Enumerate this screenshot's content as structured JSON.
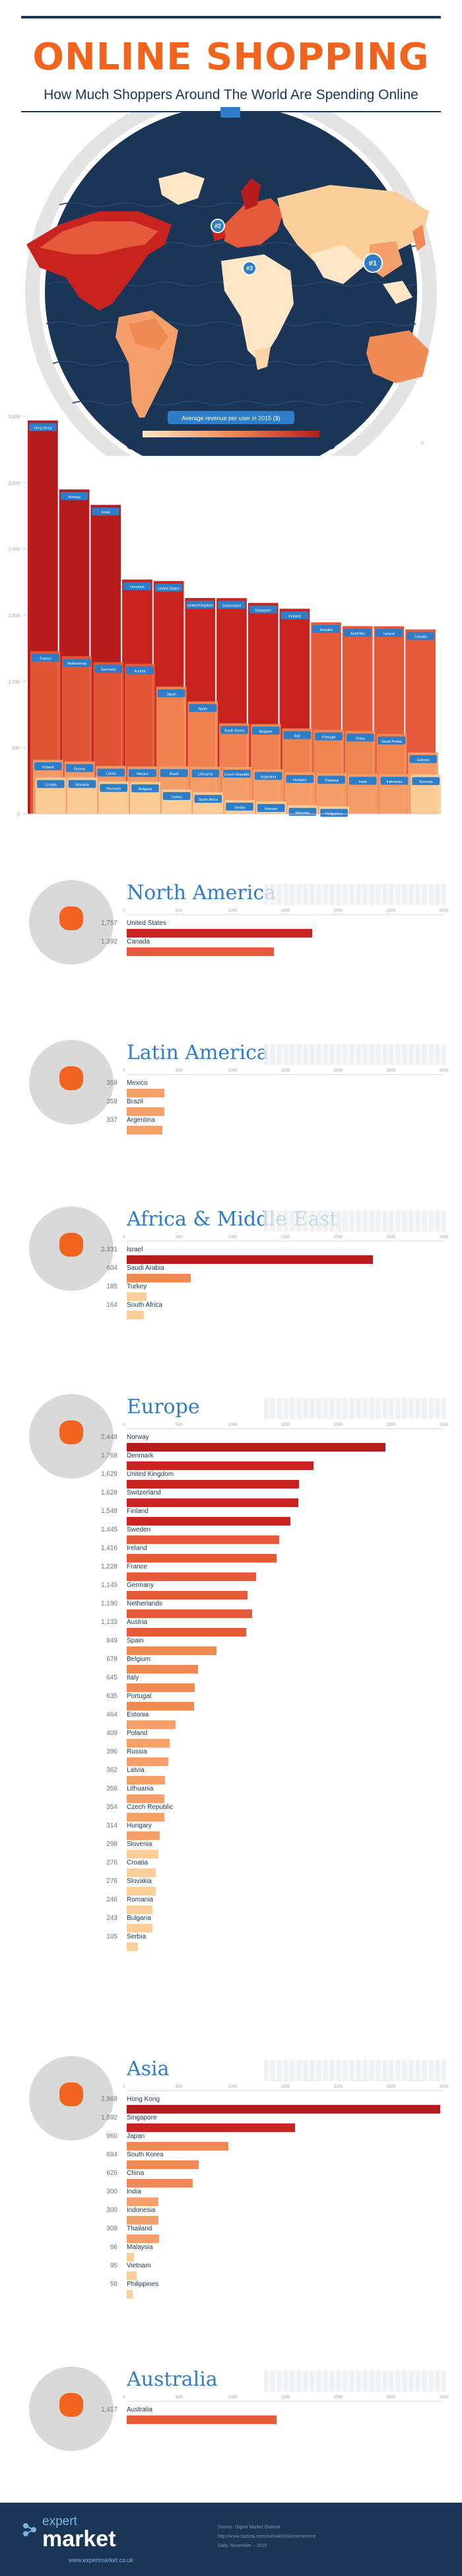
{
  "header": {
    "title": "ONLINE SHOPPING",
    "subtitle": "How Much Shoppers Around The World Are Spending Online"
  },
  "map": {
    "badges": [
      "#1",
      "#2",
      "#3"
    ],
    "legend_title": "Average revenue per user in 2015 ($)",
    "colors": {
      "navy": "#1b3557",
      "ocean": "#24466e",
      "low": "#fde7c7",
      "high": "#b71c1c",
      "accent": "#f0641e",
      "blue": "#2e7dc8"
    }
  },
  "chart_data": [
    {
      "type": "bar",
      "title": "",
      "yticks": [
        "0",
        "500",
        "1,000",
        "1,500",
        "2,000",
        "2,500",
        "3,000"
      ],
      "ylim": [
        0,
        3000
      ],
      "countries": [
        {
          "name": "Hong Kong",
          "value": 2968
        },
        {
          "name": "Norway",
          "value": 2448
        },
        {
          "name": "Israel",
          "value": 2331
        },
        {
          "name": "United States",
          "value": 1757
        },
        {
          "name": "Denmark",
          "value": 1768
        },
        {
          "name": "Singapore",
          "value": 1592
        },
        {
          "name": "United Kingdom",
          "value": 1629
        },
        {
          "name": "Switzerland",
          "value": 1628
        },
        {
          "name": "Finland",
          "value": 1548
        },
        {
          "name": "Sweden",
          "value": 1445
        },
        {
          "name": "Canada",
          "value": 1392
        },
        {
          "name": "Ireland",
          "value": 1416
        },
        {
          "name": "Australia",
          "value": 1417
        },
        {
          "name": "Germany",
          "value": 1145
        },
        {
          "name": "Netherlands",
          "value": 1190
        },
        {
          "name": "France",
          "value": 1228
        },
        {
          "name": "Austria",
          "value": 1133
        },
        {
          "name": "Japan",
          "value": 960
        },
        {
          "name": "Spain",
          "value": 849
        },
        {
          "name": "Belgium",
          "value": 678
        },
        {
          "name": "South Korea",
          "value": 684
        },
        {
          "name": "Italy",
          "value": 645
        },
        {
          "name": "Portugal",
          "value": 635
        },
        {
          "name": "Saudi Arabia",
          "value": 604
        },
        {
          "name": "China",
          "value": 626
        },
        {
          "name": "Estonia",
          "value": 464
        },
        {
          "name": "Poland",
          "value": 409
        },
        {
          "name": "Russia",
          "value": 396
        },
        {
          "name": "Latvia",
          "value": 362
        },
        {
          "name": "Lithuania",
          "value": 356
        },
        {
          "name": "Czech Republic",
          "value": 354
        },
        {
          "name": "Hungary",
          "value": 314
        },
        {
          "name": "Slovenia",
          "value": 298
        },
        {
          "name": "Croatia",
          "value": 276
        },
        {
          "name": "Slovakia",
          "value": 276
        },
        {
          "name": "India",
          "value": 300
        },
        {
          "name": "Mexico",
          "value": 358
        },
        {
          "name": "Indonesia",
          "value": 300
        },
        {
          "name": "Brazil",
          "value": 358
        },
        {
          "name": "Argentina",
          "value": 337
        },
        {
          "name": "Turkey",
          "value": 185
        },
        {
          "name": "Thailand",
          "value": 308
        },
        {
          "name": "Romania",
          "value": 246
        },
        {
          "name": "South Africa",
          "value": 164
        },
        {
          "name": "Bulgaria",
          "value": 243
        },
        {
          "name": "Malaysia",
          "value": 66
        },
        {
          "name": "Vietnam",
          "value": 95
        },
        {
          "name": "Philippines",
          "value": 58
        },
        {
          "name": "Serbia",
          "value": 105
        }
      ]
    },
    {
      "type": "bar",
      "region": "North America",
      "axis": [
        "0",
        "500",
        "1000",
        "1500",
        "2000",
        "2500",
        "3000"
      ],
      "xlim": [
        0,
        3000
      ],
      "rows": [
        {
          "label": "United States",
          "value": 1757,
          "display": "1,757"
        },
        {
          "label": "Canada",
          "value": 1392,
          "display": "1,392"
        }
      ]
    },
    {
      "type": "bar",
      "region": "Latin America",
      "axis": [
        "0",
        "500",
        "1000",
        "1500",
        "2000",
        "2500",
        "3000"
      ],
      "xlim": [
        0,
        3000
      ],
      "rows": [
        {
          "label": "Mexico",
          "value": 358,
          "display": "358"
        },
        {
          "label": "Brazil",
          "value": 358,
          "display": "358"
        },
        {
          "label": "Argentina",
          "value": 337,
          "display": "337"
        }
      ]
    },
    {
      "type": "bar",
      "region": "Africa & Middle East",
      "axis": [
        "0",
        "500",
        "1000",
        "1500",
        "2000",
        "2500",
        "3000"
      ],
      "xlim": [
        0,
        3000
      ],
      "rows": [
        {
          "label": "Israel",
          "value": 2331,
          "display": "2,331"
        },
        {
          "label": "Saudi Arabia",
          "value": 604,
          "display": "604"
        },
        {
          "label": "Turkey",
          "value": 185,
          "display": "185"
        },
        {
          "label": "South Africa",
          "value": 164,
          "display": "164"
        }
      ]
    },
    {
      "type": "bar",
      "region": "Europe",
      "axis": [
        "0",
        "500",
        "1000",
        "1500",
        "2000",
        "2500",
        "3000"
      ],
      "xlim": [
        0,
        3000
      ],
      "rows": [
        {
          "label": "Norway",
          "value": 2448,
          "display": "2,448"
        },
        {
          "label": "Denmark",
          "value": 1768,
          "display": "1,768"
        },
        {
          "label": "United Kingdom",
          "value": 1629,
          "display": "1,629"
        },
        {
          "label": "Switzerland",
          "value": 1628,
          "display": "1,628"
        },
        {
          "label": "Finland",
          "value": 1548,
          "display": "1,548"
        },
        {
          "label": "Sweden",
          "value": 1445,
          "display": "1,445"
        },
        {
          "label": "Ireland",
          "value": 1416,
          "display": "1,416"
        },
        {
          "label": "France",
          "value": 1228,
          "display": "1,228"
        },
        {
          "label": "Germany",
          "value": 1145,
          "display": "1,145"
        },
        {
          "label": "Netherlands",
          "value": 1190,
          "display": "1,190"
        },
        {
          "label": "Austria",
          "value": 1133,
          "display": "1,133"
        },
        {
          "label": "Spain",
          "value": 849,
          "display": "849"
        },
        {
          "label": "Belgium",
          "value": 678,
          "display": "678"
        },
        {
          "label": "Italy",
          "value": 645,
          "display": "645"
        },
        {
          "label": "Portugal",
          "value": 635,
          "display": "635"
        },
        {
          "label": "Estonia",
          "value": 464,
          "display": "464"
        },
        {
          "label": "Poland",
          "value": 409,
          "display": "409"
        },
        {
          "label": "Russia",
          "value": 396,
          "display": "396"
        },
        {
          "label": "Latvia",
          "value": 362,
          "display": "362"
        },
        {
          "label": "Lithuania",
          "value": 356,
          "display": "356"
        },
        {
          "label": "Czech Republic",
          "value": 354,
          "display": "354"
        },
        {
          "label": "Hungary",
          "value": 314,
          "display": "314"
        },
        {
          "label": "Slovenia",
          "value": 298,
          "display": "298"
        },
        {
          "label": "Croatia",
          "value": 276,
          "display": "276"
        },
        {
          "label": "Slovakia",
          "value": 276,
          "display": "276"
        },
        {
          "label": "Romania",
          "value": 246,
          "display": "246"
        },
        {
          "label": "Bulgaria",
          "value": 243,
          "display": "243"
        },
        {
          "label": "Serbia",
          "value": 105,
          "display": "105"
        }
      ]
    },
    {
      "type": "bar",
      "region": "Asia",
      "axis": [
        "0",
        "500",
        "1000",
        "1500",
        "2000",
        "2500",
        "3000"
      ],
      "xlim": [
        0,
        3000
      ],
      "rows": [
        {
          "label": "Hong Kong",
          "value": 2968,
          "display": "2,968"
        },
        {
          "label": "Singapore",
          "value": 1592,
          "display": "1,592"
        },
        {
          "label": "Japan",
          "value": 960,
          "display": "960"
        },
        {
          "label": "South Korea",
          "value": 684,
          "display": "684"
        },
        {
          "label": "China",
          "value": 626,
          "display": "626"
        },
        {
          "label": "India",
          "value": 300,
          "display": "300"
        },
        {
          "label": "Indonesia",
          "value": 300,
          "display": "300"
        },
        {
          "label": "Thailand",
          "value": 308,
          "display": "308"
        },
        {
          "label": "Malaysia",
          "value": 66,
          "display": "66"
        },
        {
          "label": "Vietnam",
          "value": 95,
          "display": "95"
        },
        {
          "label": "Philippines",
          "value": 58,
          "display": "58"
        }
      ]
    },
    {
      "type": "bar",
      "region": "Australia",
      "axis": [
        "0",
        "500",
        "1000",
        "1500",
        "2000",
        "2500",
        "3000"
      ],
      "xlim": [
        0,
        3000
      ],
      "rows": [
        {
          "label": "Australia",
          "value": 1417,
          "display": "1,417"
        }
      ]
    }
  ],
  "footer": {
    "brand_top": "expert",
    "brand_bottom": "market",
    "url": "www.expertmarket.co.uk",
    "sources": [
      "Source: Digital Market Outlook",
      "http://www.statista.com/outlook/243/ecommerce",
      "Data: November – 2015"
    ]
  }
}
